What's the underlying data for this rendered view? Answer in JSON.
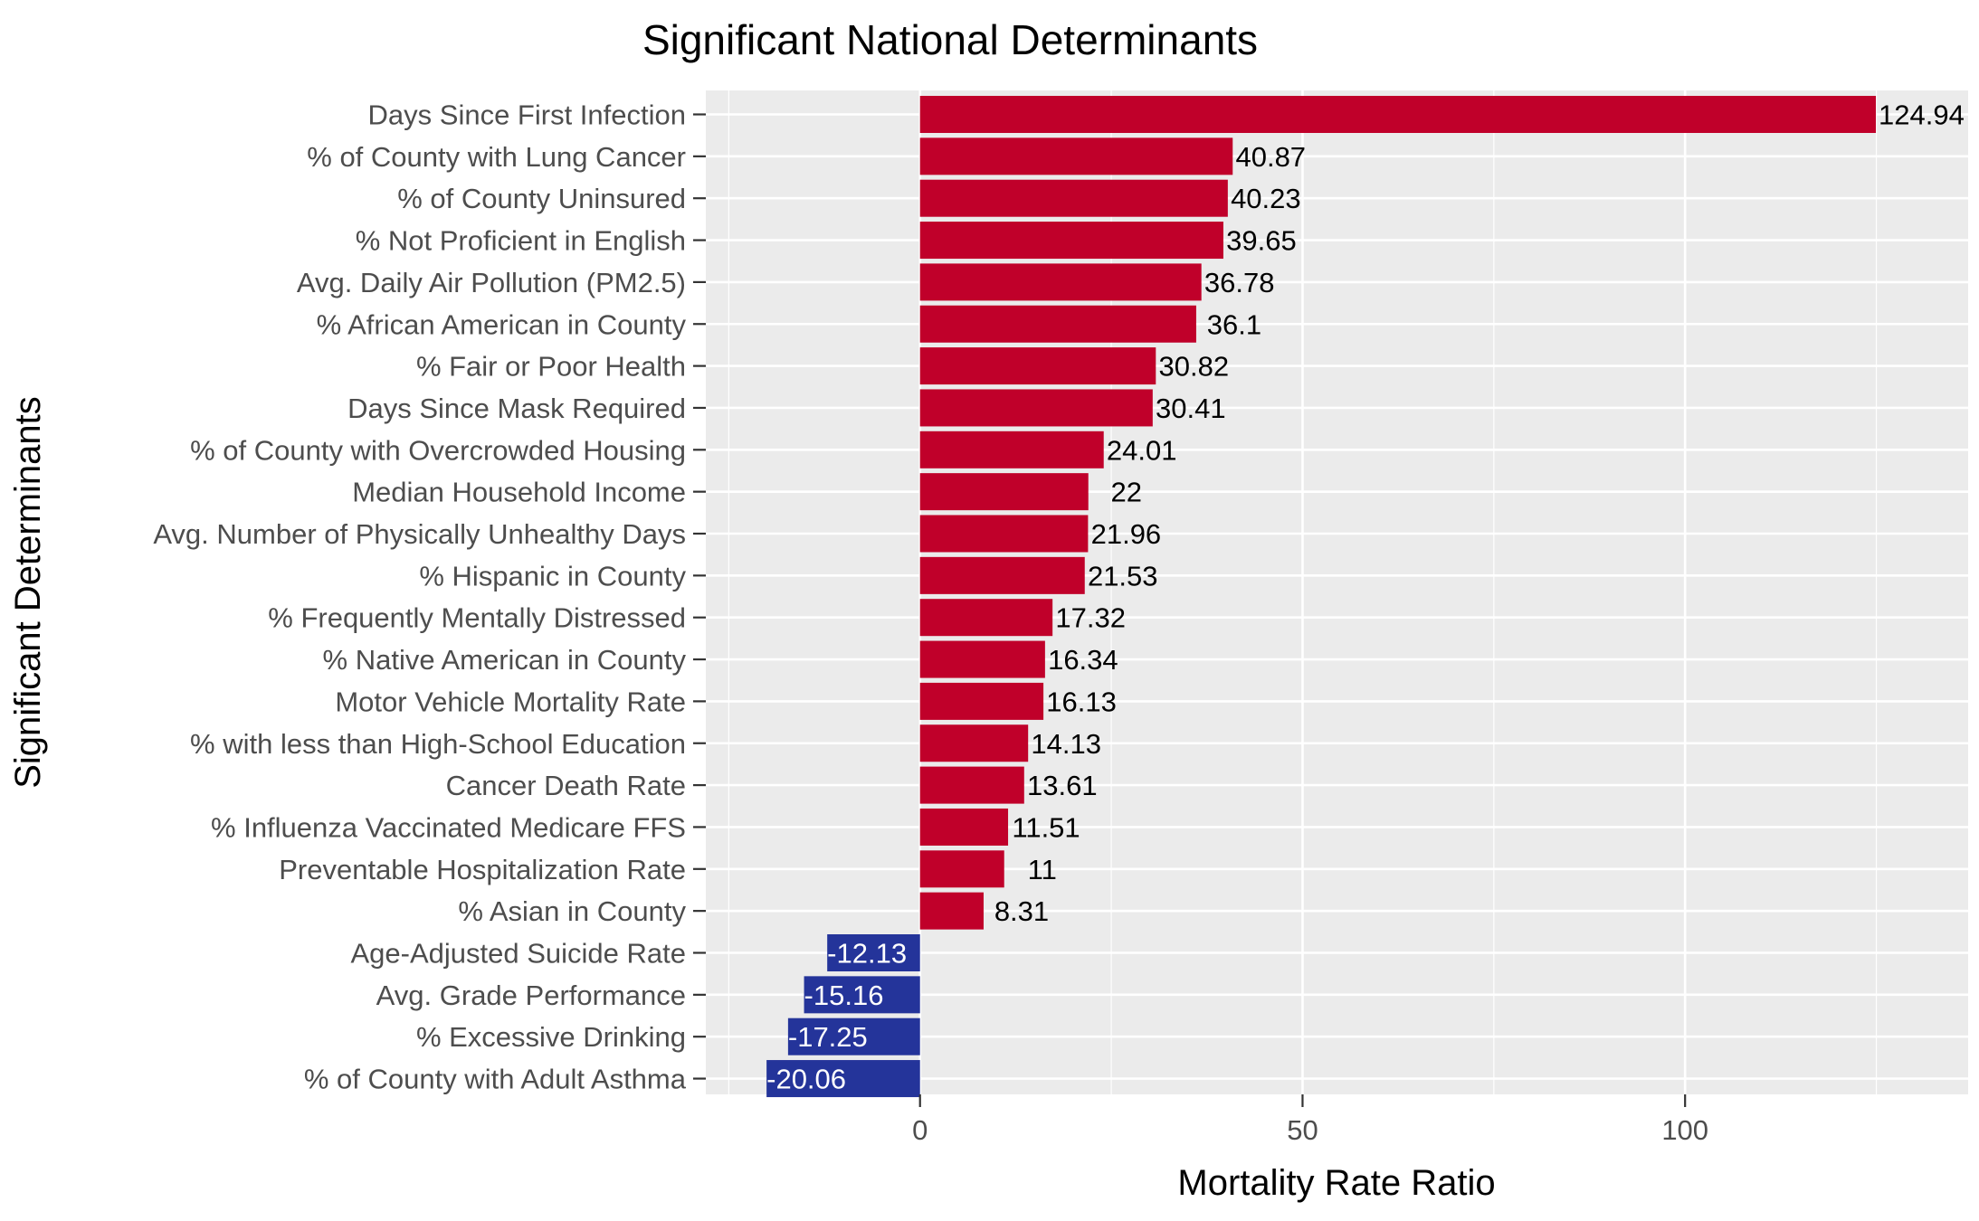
{
  "chart_data": {
    "type": "bar",
    "orientation": "horizontal",
    "title": "Significant National Determinants",
    "xlabel": "Mortality Rate Ratio",
    "ylabel": "Significant Determinants",
    "xlim": [
      -28,
      137
    ],
    "x_ticks": [
      0,
      50,
      100
    ],
    "x_tick_labels": [
      "0",
      "50",
      "100"
    ],
    "grid": true,
    "legend": "none",
    "colors": {
      "positive": "#c0002a",
      "negative": "#24349a",
      "panel": "#ebebeb",
      "grid": "#ffffff"
    },
    "categories": [
      "Days Since First Infection",
      "% of County with Lung Cancer",
      "% of County Uninsured",
      "% Not Proficient in English",
      "Avg. Daily Air Pollution (PM2.5)",
      "% African American in County",
      "% Fair or Poor Health",
      "Days Since Mask Required",
      "% of County with Overcrowded Housing",
      "Median Household Income",
      "Avg. Number of Physically Unhealthy Days",
      "% Hispanic in County",
      "% Frequently Mentally Distressed",
      "% Native American in County",
      "Motor Vehicle Mortality Rate",
      "% with less than High-School Education",
      "Cancer Death Rate",
      "% Influenza Vaccinated Medicare FFS",
      "Preventable Hospitalization Rate",
      "% Asian in County",
      "Age-Adjusted Suicide Rate",
      "Avg. Grade Performance",
      "% Excessive Drinking",
      "% of County with Adult Asthma"
    ],
    "values": [
      124.94,
      40.87,
      40.23,
      39.65,
      36.78,
      36.1,
      30.82,
      30.41,
      24.01,
      22,
      21.96,
      21.53,
      17.32,
      16.34,
      16.13,
      14.13,
      13.61,
      11.51,
      11,
      8.31,
      -12.13,
      -15.16,
      -17.25,
      -20.06
    ],
    "value_labels": [
      "124.94",
      "40.87",
      "40.23",
      "39.65",
      "36.78",
      "36.1",
      "30.82",
      "30.41",
      "24.01",
      "22",
      "21.96",
      "21.53",
      "17.32",
      "16.34",
      "16.13",
      "14.13",
      "13.61",
      "11.51",
      "11",
      "8.31",
      "-12.13",
      "-15.16",
      "-17.25",
      "-20.06"
    ]
  }
}
